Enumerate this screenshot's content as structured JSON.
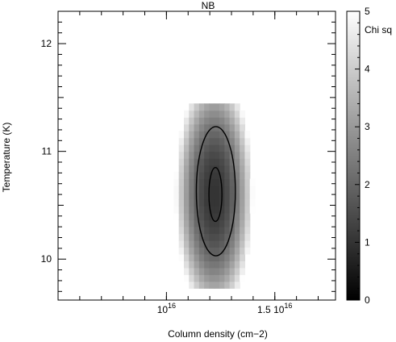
{
  "chart_data": {
    "type": "heatmap",
    "title": "NB",
    "xlabel": "Column density (cm−2)",
    "ylabel": "Temperature (K)",
    "x_scale": "linear",
    "x_unit": 1e+16,
    "xlim": [
      5000000000000000.0,
      1.78e+16
    ],
    "ylim": [
      9.62,
      12.3
    ],
    "x_ticks": [
      {
        "value": 1e+16,
        "mantissa": "",
        "base": "10",
        "exp": "16"
      },
      {
        "value": 1.5e+16,
        "mantissa": "1.5",
        "base": "10",
        "exp": "16"
      }
    ],
    "y_ticks": [
      {
        "value": 10,
        "label": "10"
      },
      {
        "value": 11,
        "label": "11"
      },
      {
        "value": 12,
        "label": "12"
      }
    ],
    "colorbar": {
      "label": "Chi sq",
      "range": [
        0,
        5
      ],
      "colormap": "gray",
      "low_color": "#000000",
      "high_color": "#ffffff",
      "ticks": [
        {
          "value": 0,
          "label": "0"
        },
        {
          "value": 1,
          "label": "1"
        },
        {
          "value": 2,
          "label": "2"
        },
        {
          "value": 3,
          "label": "3"
        },
        {
          "value": 4,
          "label": "4"
        },
        {
          "value": 5,
          "label": "5"
        }
      ]
    },
    "chi_sq_field": {
      "minimum": {
        "x": 1.22e+16,
        "y": 10.6,
        "value": 1.0
      },
      "x_sigma": 630000000000000.0,
      "y_sigma": 0.4,
      "grid": {
        "x_start": 9400000000000000.0,
        "x_step": 234000000000000.0,
        "nx": 25,
        "y_start": 9.73,
        "y_step": 0.0635,
        "ny": 27
      },
      "ceiling": 5
    },
    "contours": [
      {
        "level": 2,
        "center": [
          1.228e+16,
          10.63
        ],
        "x_radius": 900000000000000.0,
        "y_radius": 0.6
      },
      {
        "level": 3.3,
        "center": [
          1.226e+16,
          10.6
        ],
        "x_radius": 300000000000000.0,
        "y_radius": 0.25
      }
    ],
    "grid": false,
    "legend": "none"
  }
}
